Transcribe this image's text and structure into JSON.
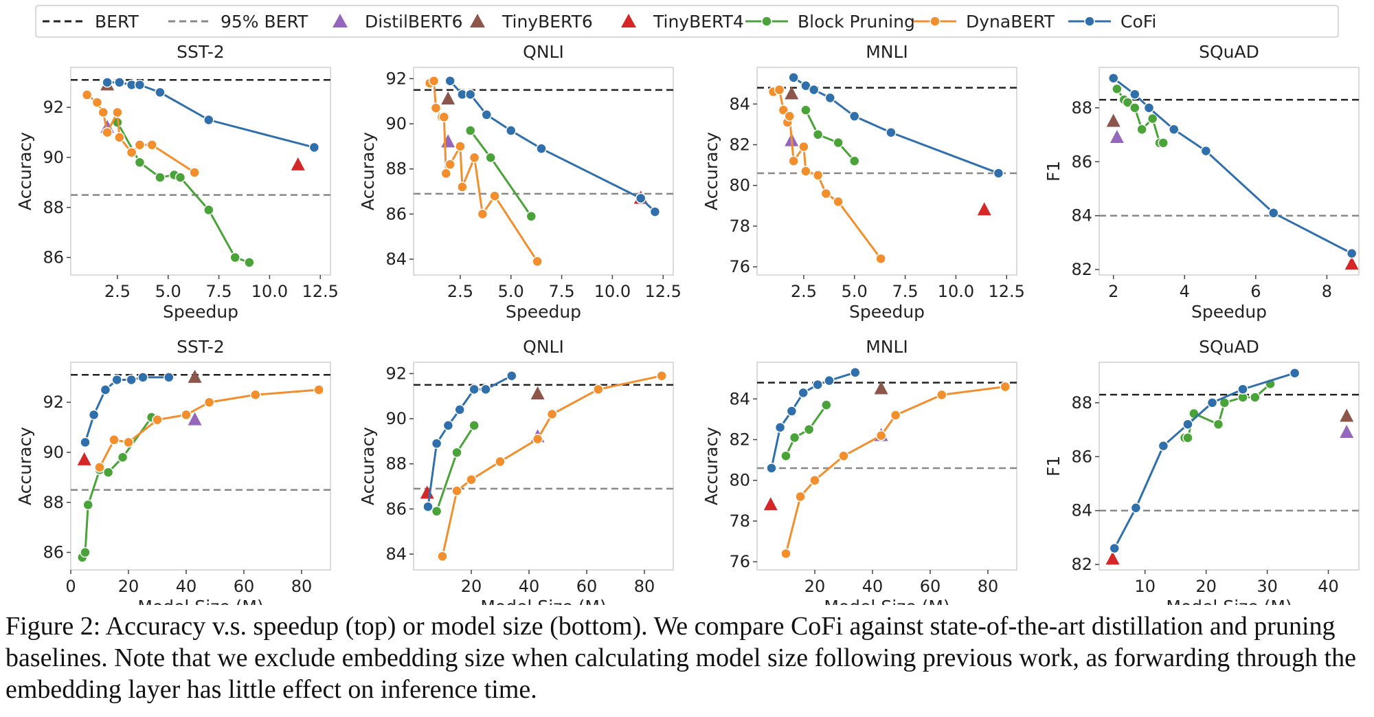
{
  "legend": {
    "placement": "top",
    "items": [
      {
        "key": "bert",
        "label": "BERT",
        "kind": "dash",
        "color": "#222222"
      },
      {
        "key": "bert95",
        "label": "95% BERT",
        "kind": "dash",
        "color": "#888888"
      },
      {
        "key": "distil6",
        "label": "DistilBERT6",
        "kind": "tri",
        "color": "#9467bd"
      },
      {
        "key": "tiny6",
        "label": "TinyBERT6",
        "kind": "tri",
        "color": "#8c564b"
      },
      {
        "key": "tiny4",
        "label": "TinyBERT4",
        "kind": "tri",
        "color": "#d62728"
      },
      {
        "key": "block",
        "label": "Block Pruning",
        "kind": "line",
        "color": "#4aa339"
      },
      {
        "key": "dyna",
        "label": "DynaBERT",
        "kind": "line",
        "color": "#f28e2b"
      },
      {
        "key": "cofi",
        "label": "CoFi",
        "kind": "line",
        "color": "#2f6fab"
      }
    ]
  },
  "caption": "Figure 2: Accuracy v.s. speedup (top) or model size (bottom). We compare CoFi against state-of-the-art distillation and pruning baselines. Note that we exclude embedding size when calculating model size following previous work, as forwarding through the embedding layer has little effect on inference time.",
  "chart_data": [
    {
      "type": "line",
      "title": "SST-2",
      "xlabel": "Speedup",
      "ylabel": "Accuracy",
      "xlim": [
        0.2,
        13
      ],
      "ylim": [
        85.3,
        93.6
      ],
      "xticks": [
        2.5,
        5.0,
        7.5,
        10.0,
        12.5
      ],
      "yticks": [
        86,
        88,
        90,
        92
      ],
      "bert": 93.1,
      "bert95": 88.5,
      "grid": false,
      "series": [
        {
          "key": "cofi",
          "x": [
            2,
            2.6,
            3.2,
            3.6,
            4.6,
            7,
            12.2
          ],
          "y": [
            93,
            93,
            92.9,
            92.9,
            92.6,
            91.5,
            90.4
          ]
        },
        {
          "key": "block",
          "x": [
            2.5,
            3.6,
            4.6,
            5.3,
            5.6,
            7,
            8.3,
            9
          ],
          "y": [
            91.4,
            89.8,
            89.2,
            89.3,
            89.2,
            87.9,
            86,
            85.8
          ]
        },
        {
          "key": "dyna",
          "x": [
            1,
            1.5,
            1.8,
            2,
            2.5,
            2.6,
            3.2,
            3.6,
            4.2,
            6.3
          ],
          "y": [
            92.5,
            92.2,
            91.8,
            91,
            91.8,
            90.8,
            90.2,
            90.5,
            90.5,
            89.4
          ]
        },
        {
          "key": "distil6",
          "x": [
            2
          ],
          "y": [
            91.2
          ]
        },
        {
          "key": "tiny6",
          "x": [
            2
          ],
          "y": [
            92.9
          ]
        },
        {
          "key": "tiny4",
          "x": [
            11.4
          ],
          "y": [
            89.7
          ]
        }
      ]
    },
    {
      "type": "line",
      "title": "QNLI",
      "xlabel": "Speedup",
      "ylabel": "Accuracy",
      "xlim": [
        0.2,
        13
      ],
      "ylim": [
        83.3,
        92.5
      ],
      "xticks": [
        2.5,
        5.0,
        7.5,
        10.0,
        12.5
      ],
      "yticks": [
        84,
        86,
        88,
        90,
        92
      ],
      "bert": 91.5,
      "bert95": 86.9,
      "grid": false,
      "series": [
        {
          "key": "cofi",
          "x": [
            2,
            2.6,
            3,
            3.8,
            5,
            6.5,
            11.4,
            12.1
          ],
          "y": [
            91.9,
            91.3,
            91.3,
            90.4,
            89.7,
            88.9,
            86.7,
            86.1
          ]
        },
        {
          "key": "block",
          "x": [
            3,
            4,
            6
          ],
          "y": [
            89.7,
            88.5,
            85.9
          ]
        },
        {
          "key": "dyna",
          "x": [
            1,
            1.2,
            1.3,
            1.6,
            1.7,
            1.8,
            2,
            2.5,
            2.6,
            3.2,
            3.6,
            4.2,
            6.3
          ],
          "y": [
            91.8,
            91.9,
            90.7,
            90.3,
            90.3,
            87.8,
            88.2,
            89,
            87.2,
            88.5,
            86,
            86.8,
            83.9
          ]
        },
        {
          "key": "distil6",
          "x": [
            1.9
          ],
          "y": [
            89.2
          ]
        },
        {
          "key": "tiny6",
          "x": [
            1.9
          ],
          "y": [
            91.1
          ]
        },
        {
          "key": "tiny4",
          "x": [
            11.4
          ],
          "y": [
            86.7
          ]
        }
      ]
    },
    {
      "type": "line",
      "title": "MNLI",
      "xlabel": "Speedup",
      "ylabel": "Accuracy",
      "xlim": [
        0.2,
        13
      ],
      "ylim": [
        75.6,
        85.8
      ],
      "xticks": [
        2.5,
        5.0,
        7.5,
        10.0,
        12.5
      ],
      "yticks": [
        76,
        78,
        80,
        82,
        84
      ],
      "bert": 84.8,
      "bert95": 80.6,
      "grid": false,
      "series": [
        {
          "key": "cofi",
          "x": [
            2,
            2.6,
            3,
            3.8,
            5,
            6.8,
            12.1
          ],
          "y": [
            85.3,
            84.9,
            84.7,
            84.3,
            83.4,
            82.6,
            80.6
          ]
        },
        {
          "key": "block",
          "x": [
            2.6,
            3.2,
            4.2,
            5
          ],
          "y": [
            83.7,
            82.5,
            82.1,
            81.2
          ]
        },
        {
          "key": "dyna",
          "x": [
            1,
            1.3,
            1.5,
            1.7,
            1.8,
            2,
            2.5,
            2.6,
            3.2,
            3.6,
            4.2,
            6.3
          ],
          "y": [
            84.6,
            84.7,
            83.7,
            83.1,
            83.4,
            81.2,
            81.9,
            80.7,
            80.5,
            79.6,
            79.2,
            76.4
          ]
        },
        {
          "key": "distil6",
          "x": [
            1.9
          ],
          "y": [
            82.2
          ]
        },
        {
          "key": "tiny6",
          "x": [
            1.9
          ],
          "y": [
            84.5
          ]
        },
        {
          "key": "tiny4",
          "x": [
            11.4
          ],
          "y": [
            78.8
          ]
        }
      ]
    },
    {
      "type": "line",
      "title": "SQuAD",
      "xlabel": "Speedup",
      "ylabel": "F1",
      "xlim": [
        1.6,
        8.9
      ],
      "ylim": [
        81.8,
        89.5
      ],
      "xticks": [
        2,
        4,
        6,
        8
      ],
      "yticks": [
        82,
        84,
        86,
        88
      ],
      "bert": 88.3,
      "bert95": 84,
      "grid": false,
      "series": [
        {
          "key": "cofi",
          "x": [
            2,
            2.6,
            3,
            3.7,
            4.6,
            6.5,
            8.7
          ],
          "y": [
            89.1,
            88.5,
            88,
            87.2,
            86.4,
            84.1,
            82.6
          ]
        },
        {
          "key": "block",
          "x": [
            2.1,
            2.3,
            2.4,
            2.6,
            2.8,
            3.1,
            3.3,
            3.4
          ],
          "y": [
            88.7,
            88.3,
            88.2,
            88,
            87.2,
            87.6,
            86.7,
            86.7
          ]
        },
        {
          "key": "distil6",
          "x": [
            2.1
          ],
          "y": [
            86.9
          ]
        },
        {
          "key": "tiny6",
          "x": [
            2
          ],
          "y": [
            87.5
          ]
        },
        {
          "key": "tiny4",
          "x": [
            8.7
          ],
          "y": [
            82.2
          ]
        }
      ]
    },
    {
      "type": "line",
      "title": "SST-2",
      "xlabel": "Model Size (M)",
      "ylabel": "Accuracy",
      "xlim": [
        0,
        90
      ],
      "ylim": [
        85.3,
        93.6
      ],
      "xticks": [
        0,
        20,
        40,
        60,
        80
      ],
      "yticks": [
        86,
        88,
        90,
        92
      ],
      "bert": 93.1,
      "bert95": 88.5,
      "grid": false,
      "series": [
        {
          "key": "cofi",
          "x": [
            5,
            8,
            12,
            16,
            21,
            25,
            34
          ],
          "y": [
            90.4,
            91.5,
            92.5,
            92.9,
            92.9,
            93,
            93
          ]
        },
        {
          "key": "block",
          "x": [
            4,
            5,
            6,
            10,
            13,
            18,
            28
          ],
          "y": [
            85.8,
            86,
            87.9,
            89.3,
            89.2,
            89.8,
            91.4
          ]
        },
        {
          "key": "dyna",
          "x": [
            10,
            15,
            20,
            30,
            40,
            48,
            64,
            86
          ],
          "y": [
            89.4,
            90.5,
            90.4,
            91.3,
            91.5,
            92,
            92.3,
            92.5
          ]
        },
        {
          "key": "distil6",
          "x": [
            43
          ],
          "y": [
            91.3
          ]
        },
        {
          "key": "tiny6",
          "x": [
            43
          ],
          "y": [
            93
          ]
        },
        {
          "key": "tiny4",
          "x": [
            4.7
          ],
          "y": [
            89.7
          ]
        }
      ]
    },
    {
      "type": "line",
      "title": "QNLI",
      "xlabel": "Model Size (M)",
      "ylabel": "Accuracy",
      "xlim": [
        0,
        90
      ],
      "ylim": [
        83.3,
        92.5
      ],
      "xticks": [
        20,
        40,
        60,
        80
      ],
      "yticks": [
        84,
        86,
        88,
        90,
        92
      ],
      "bert": 91.5,
      "bert95": 86.9,
      "grid": false,
      "series": [
        {
          "key": "cofi",
          "x": [
            5,
            8,
            12,
            16,
            21,
            25,
            34
          ],
          "y": [
            86.1,
            88.9,
            89.7,
            90.4,
            91.3,
            91.3,
            91.9
          ]
        },
        {
          "key": "block",
          "x": [
            8,
            15,
            21
          ],
          "y": [
            85.9,
            88.5,
            89.7
          ]
        },
        {
          "key": "dyna",
          "x": [
            10,
            15,
            20,
            30,
            43,
            48,
            64,
            86
          ],
          "y": [
            83.9,
            86.8,
            87.3,
            88.1,
            89.1,
            90.2,
            91.3,
            91.9
          ]
        },
        {
          "key": "distil6",
          "x": [
            43
          ],
          "y": [
            89.2
          ]
        },
        {
          "key": "tiny6",
          "x": [
            43
          ],
          "y": [
            91.1
          ]
        },
        {
          "key": "tiny4",
          "x": [
            4.7
          ],
          "y": [
            86.7
          ]
        }
      ]
    },
    {
      "type": "line",
      "title": "MNLI",
      "xlabel": "Model Size (M)",
      "ylabel": "Accuracy",
      "xlim": [
        0,
        90
      ],
      "ylim": [
        75.6,
        85.8
      ],
      "xticks": [
        20,
        40,
        60,
        80
      ],
      "yticks": [
        76,
        78,
        80,
        82,
        84
      ],
      "bert": 84.8,
      "bert95": 80.6,
      "grid": false,
      "series": [
        {
          "key": "cofi",
          "x": [
            5,
            8,
            12,
            16,
            21,
            25,
            34
          ],
          "y": [
            80.6,
            82.6,
            83.4,
            84.3,
            84.7,
            84.9,
            85.3
          ]
        },
        {
          "key": "block",
          "x": [
            10,
            13,
            18,
            24
          ],
          "y": [
            81.2,
            82.1,
            82.5,
            83.7
          ]
        },
        {
          "key": "dyna",
          "x": [
            10,
            15,
            20,
            30,
            43,
            48,
            64,
            86
          ],
          "y": [
            76.4,
            79.2,
            80,
            81.2,
            82.2,
            83.2,
            84.2,
            84.6
          ]
        },
        {
          "key": "distil6",
          "x": [
            43
          ],
          "y": [
            82.2
          ]
        },
        {
          "key": "tiny6",
          "x": [
            43
          ],
          "y": [
            84.5
          ]
        },
        {
          "key": "tiny4",
          "x": [
            4.7
          ],
          "y": [
            78.8
          ]
        }
      ]
    },
    {
      "type": "line",
      "title": "SQuAD",
      "xlabel": "Model Size (M)",
      "ylabel": "F1",
      "xlim": [
        2.5,
        45
      ],
      "ylim": [
        81.8,
        89.5
      ],
      "xticks": [
        10,
        20,
        30,
        40
      ],
      "yticks": [
        82,
        84,
        86,
        88
      ],
      "bert": 88.3,
      "bert95": 84,
      "grid": false,
      "series": [
        {
          "key": "cofi",
          "x": [
            5,
            8.5,
            13,
            17,
            21,
            26,
            34.5
          ],
          "y": [
            82.6,
            84.1,
            86.4,
            87.2,
            88,
            88.5,
            89.1
          ]
        },
        {
          "key": "block",
          "x": [
            16.5,
            17,
            18,
            22,
            23,
            26,
            28,
            30.5
          ],
          "y": [
            86.7,
            86.7,
            87.6,
            87.2,
            88,
            88.2,
            88.2,
            88.7
          ]
        },
        {
          "key": "distil6",
          "x": [
            43
          ],
          "y": [
            86.9
          ]
        },
        {
          "key": "tiny6",
          "x": [
            43
          ],
          "y": [
            87.5
          ]
        },
        {
          "key": "tiny4",
          "x": [
            4.7
          ],
          "y": [
            82.2
          ]
        }
      ]
    }
  ]
}
